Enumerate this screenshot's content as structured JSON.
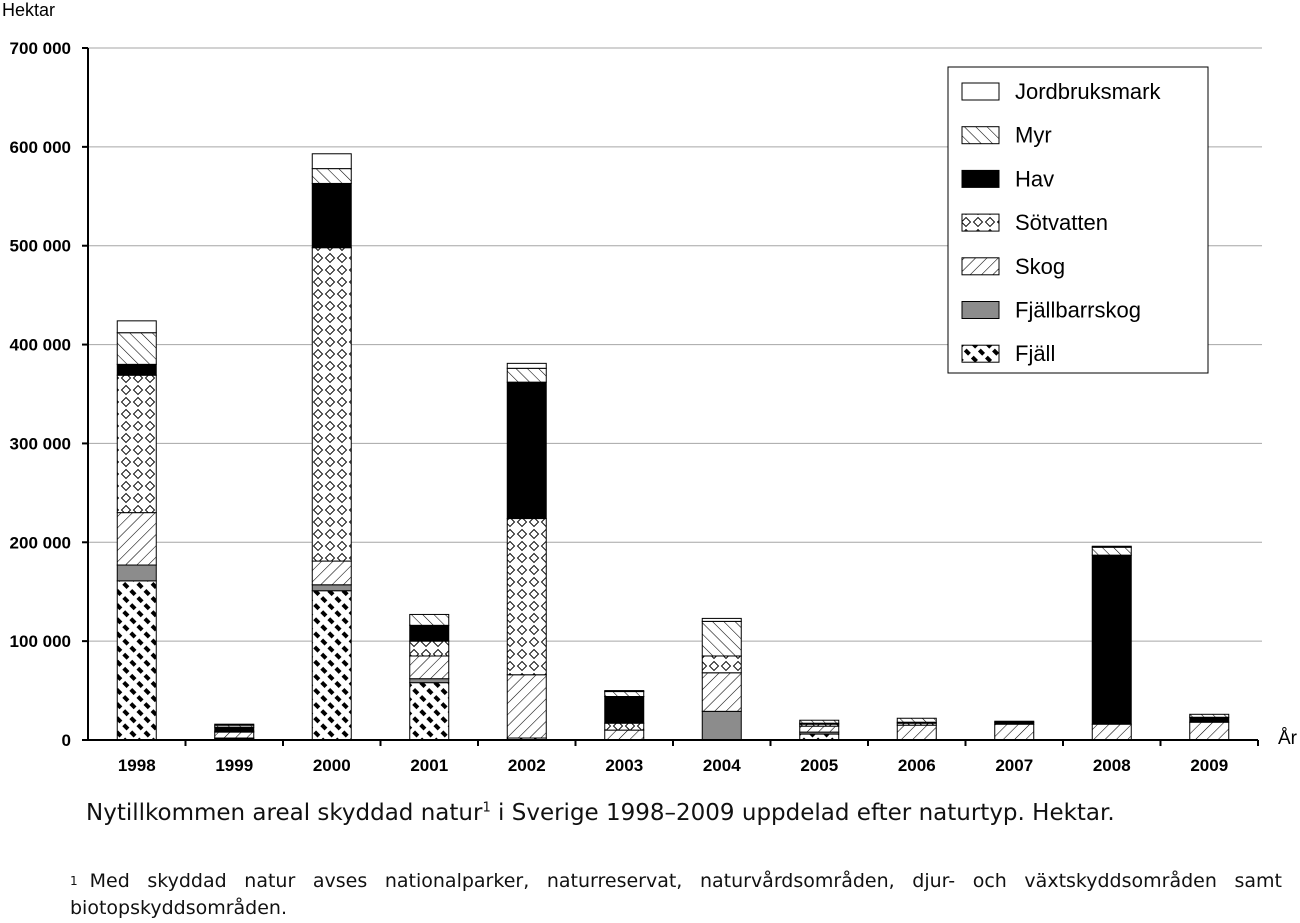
{
  "chart_data": {
    "type": "bar",
    "stacked": true,
    "ylabel": "Hektar",
    "xlabel": "År",
    "ylim": [
      0,
      700000
    ],
    "yticks": [
      0,
      100000,
      200000,
      300000,
      400000,
      500000,
      600000,
      700000
    ],
    "ytick_labels": [
      "0",
      "100 000",
      "200 000",
      "300 000",
      "400 000",
      "500 000",
      "600 000",
      "700 000"
    ],
    "grid": true,
    "legend_position": "top-right",
    "categories": [
      "1998",
      "1999",
      "2000",
      "2001",
      "2002",
      "2003",
      "2004",
      "2005",
      "2006",
      "2007",
      "2008",
      "2009"
    ],
    "series": [
      {
        "name": "Fjäll",
        "pattern": "fjall",
        "values": [
          161000,
          1000,
          151000,
          58000,
          2000,
          0,
          0,
          6000,
          0,
          0,
          0,
          0
        ]
      },
      {
        "name": "Fjällbarrskog",
        "pattern": "fjallbarrskog",
        "values": [
          16000,
          1000,
          6000,
          4000,
          0,
          0,
          29000,
          2000,
          0,
          0,
          0,
          0
        ]
      },
      {
        "name": "Skog",
        "pattern": "skog",
        "values": [
          53000,
          6000,
          24000,
          23000,
          64000,
          10000,
          39000,
          6000,
          15000,
          16000,
          16000,
          18000
        ]
      },
      {
        "name": "Sötvatten",
        "pattern": "sotvatten",
        "values": [
          139000,
          1000,
          317000,
          15000,
          158000,
          7000,
          17000,
          2000,
          2000,
          0,
          0,
          0
        ]
      },
      {
        "name": "Hav",
        "pattern": "hav",
        "values": [
          11000,
          4000,
          65000,
          16000,
          138000,
          27000,
          0,
          1000,
          1000,
          2000,
          171000,
          5000
        ]
      },
      {
        "name": "Myr",
        "pattern": "myr",
        "values": [
          32000,
          2000,
          15000,
          11000,
          14000,
          5000,
          35000,
          3000,
          4000,
          1000,
          8000,
          3000
        ]
      },
      {
        "name": "Jordbruksmark",
        "pattern": "jordbruksmark",
        "values": [
          12000,
          1000,
          15000,
          0,
          5000,
          1000,
          3000,
          0,
          0,
          0,
          1000,
          0
        ]
      }
    ],
    "colors": {
      "axis": "#000000",
      "grid": "#a6a6a6",
      "fill_dark": "#000000",
      "fill_grey": "#8c8c8c"
    }
  },
  "caption": {
    "text": "Nytillkommen areal skyddad natur",
    "footnote_mark": "1",
    "text_rest": " i Sverige 1998–2009 uppdelad efter naturtyp. Hektar."
  },
  "footnote": {
    "mark": "1",
    "text": "Med skyddad natur avses nationalparker, naturreservat, naturvårdsområden, djur- och växtskyddsområden samt biotopskyddsområden."
  }
}
